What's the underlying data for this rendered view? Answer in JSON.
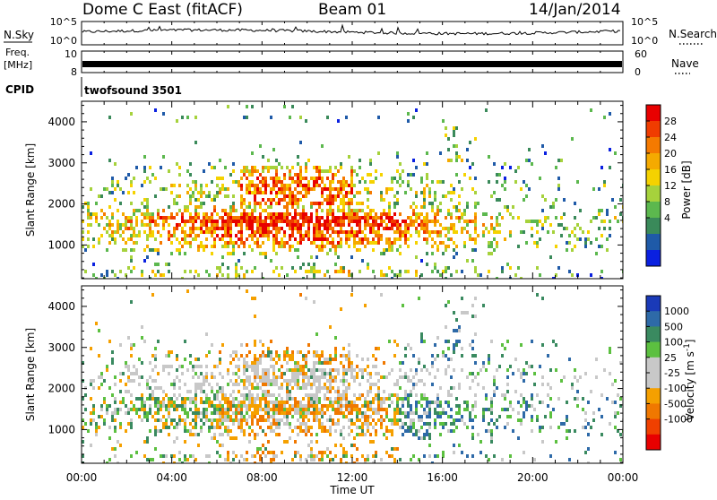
{
  "header": {
    "station": "Dome C East (fitACF)",
    "beam": "Beam 01",
    "date": "14/Jan/2014"
  },
  "nsky_panel": {
    "label": "N.Sky",
    "left_ticks": [
      "10^5",
      "10^0"
    ],
    "right_ticks": [
      "10^5",
      "10^0"
    ],
    "right_label": "N.Search"
  },
  "freq_panel": {
    "label_top": "Freq.",
    "label_unit": "[MHz]",
    "left_ticks": [
      "10",
      "8"
    ],
    "right_ticks": [
      "60",
      "0"
    ],
    "right_label": "Nave"
  },
  "cpid_panel": {
    "label": "CPID",
    "program": "twofsound 3501"
  },
  "chart_data": [
    {
      "type": "heatmap",
      "name": "power",
      "ylabel": "Slant Range [km]",
      "yticks": [
        1000,
        2000,
        3000,
        4000
      ],
      "ylim": [
        180,
        4500
      ],
      "xlim_hours": [
        0,
        24
      ],
      "colorbar": {
        "label": "Power [dB]",
        "ticks": [
          "28",
          "24",
          "20",
          "16",
          "12",
          "8",
          "4"
        ],
        "colors": [
          "#e80000",
          "#f03c00",
          "#f57a00",
          "#f5aa00",
          "#f5d200",
          "#a6d23c",
          "#5cb84e",
          "#3a8a5a",
          "#1f5aa8",
          "#0a20e0"
        ]
      }
    },
    {
      "type": "heatmap",
      "name": "velocity",
      "ylabel": "Slant Range [km]",
      "yticks": [
        1000,
        2000,
        3000,
        4000
      ],
      "ylim": [
        180,
        4500
      ],
      "xlim_hours": [
        0,
        24
      ],
      "xticks": [
        "00:00",
        "04:00",
        "08:00",
        "12:00",
        "16:00",
        "20:00",
        "00:00"
      ],
      "xlabel": "Time UT",
      "colorbar": {
        "label": "Velocity [m s^-1]",
        "ticks": [
          "1000",
          "500",
          "100",
          "25",
          "-25",
          "-100",
          "-500",
          "-1000"
        ],
        "colors": [
          "#1a3ab8",
          "#2e6aa8",
          "#3a8a60",
          "#5cc040",
          "#c8c8c8",
          "#c8c8c8",
          "#f5a000",
          "#f07800",
          "#f04000",
          "#e80000"
        ]
      }
    }
  ]
}
